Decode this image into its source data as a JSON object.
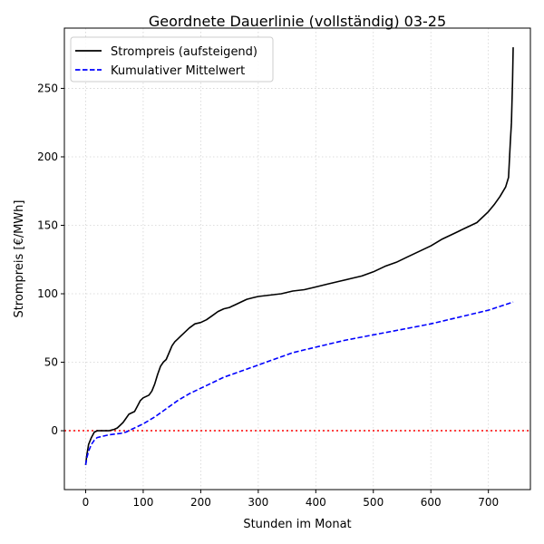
{
  "chart_data": {
    "type": "line",
    "title": "Geordnete Dauerlinie (vollständig) 03-25",
    "xlabel": "Stunden im Monat",
    "ylabel": "Strompreis [€/MWh]",
    "xlim": [
      -37,
      773
    ],
    "ylim": [
      -43,
      294
    ],
    "xticks": [
      0,
      100,
      200,
      300,
      400,
      500,
      600,
      700
    ],
    "yticks": [
      0,
      50,
      100,
      150,
      200,
      250
    ],
    "grid": true,
    "legend_position": "top-left",
    "reference_line": {
      "y": 0,
      "color": "#ff0000",
      "style": "dotted"
    },
    "series": [
      {
        "name": "Strompreis (aufsteigend)",
        "color": "#000000",
        "style": "solid",
        "x": [
          0,
          2,
          5,
          10,
          15,
          20,
          30,
          40,
          50,
          55,
          60,
          65,
          70,
          75,
          80,
          85,
          90,
          95,
          100,
          110,
          115,
          120,
          125,
          130,
          135,
          140,
          145,
          150,
          155,
          160,
          165,
          170,
          180,
          190,
          200,
          210,
          220,
          230,
          240,
          250,
          260,
          270,
          280,
          290,
          300,
          320,
          340,
          360,
          380,
          400,
          420,
          440,
          460,
          480,
          500,
          520,
          540,
          560,
          580,
          600,
          620,
          640,
          660,
          680,
          700,
          710,
          720,
          730,
          735,
          738,
          740,
          742,
          743
        ],
        "values": [
          -25,
          -18,
          -10,
          -5,
          -1,
          0,
          0,
          0,
          1,
          2,
          4,
          6,
          9,
          12,
          13,
          14,
          18,
          22,
          24,
          26,
          29,
          34,
          41,
          47,
          50,
          52,
          57,
          62,
          65,
          67,
          69,
          71,
          75,
          78,
          79,
          81,
          84,
          87,
          89,
          90,
          92,
          94,
          96,
          97,
          98,
          99,
          100,
          102,
          103,
          105,
          107,
          109,
          111,
          113,
          116,
          120,
          123,
          127,
          131,
          135,
          140,
          144,
          148,
          152,
          160,
          165,
          171,
          178,
          185,
          210,
          225,
          255,
          280
        ]
      },
      {
        "name": "Kumulativer Mittelwert",
        "color": "#0000ff",
        "style": "dashed",
        "x": [
          0,
          2,
          5,
          10,
          15,
          20,
          30,
          40,
          50,
          60,
          70,
          80,
          90,
          100,
          120,
          140,
          160,
          180,
          200,
          220,
          240,
          260,
          280,
          300,
          320,
          340,
          360,
          380,
          400,
          450,
          500,
          550,
          600,
          650,
          700,
          743
        ],
        "values": [
          -25,
          -20,
          -15,
          -10,
          -7,
          -5,
          -4,
          -3,
          -2.5,
          -2,
          -1,
          1,
          3,
          5,
          10,
          16,
          22,
          27,
          31,
          35,
          39,
          42,
          45,
          48,
          51,
          54,
          57,
          59,
          61,
          66,
          70,
          74,
          78,
          83,
          88,
          94
        ]
      }
    ]
  }
}
